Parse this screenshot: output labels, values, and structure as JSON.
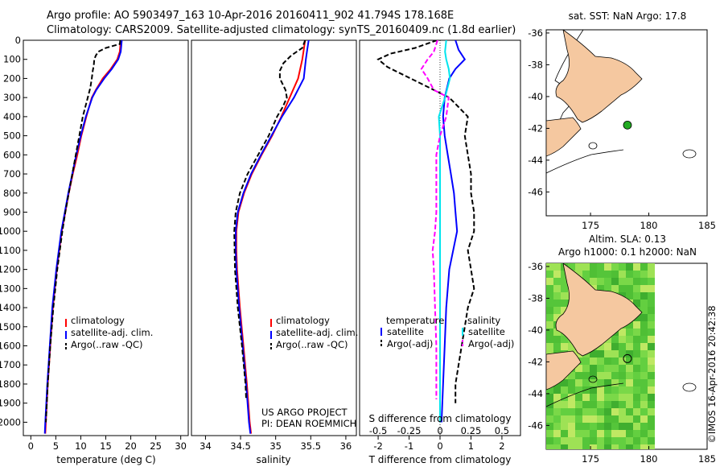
{
  "header": {
    "line1": "Argo profile: AO 5903497_163 10-Apr-2016 20160411_902 41.794S 178.168E",
    "line2": "Climatology: CARS2009. Satellite-adjusted climatology: synTS_20160409.nc (1.8d earlier)"
  },
  "colors": {
    "climatology": "#ff0000",
    "satellite": "#0000ff",
    "argo": "#000000",
    "salinity_satellite": "#00e5ee",
    "salinity_argo": "#ff00ff",
    "land": "#f5c8a0",
    "sla_field": "#59c83a"
  },
  "chart_data": [
    {
      "type": "line",
      "name": "temperature-profile",
      "xlabel": "temperature (deg C)",
      "ylabel": "",
      "xlim": [
        -1.5,
        31.5
      ],
      "ylim": [
        2070,
        0
      ],
      "xticks": [
        0,
        5,
        10,
        15,
        20,
        25,
        30
      ],
      "yticks": [
        0,
        100,
        200,
        300,
        400,
        500,
        600,
        700,
        800,
        900,
        1000,
        1100,
        1200,
        1300,
        1400,
        1500,
        1600,
        1700,
        1800,
        1900,
        2000
      ],
      "legend_position": "lower-left",
      "series": [
        {
          "name": "climatology",
          "color": "#ff0000",
          "style": "solid",
          "depth": [
            0,
            60,
            100,
            150,
            200,
            260,
            300,
            400,
            500,
            600,
            700,
            800,
            900,
            1000,
            1200,
            1400,
            1600,
            1800,
            2000,
            2060
          ],
          "values": [
            18.0,
            17.8,
            17.3,
            16.0,
            14.4,
            13.0,
            12.2,
            11.1,
            10.1,
            9.3,
            8.4,
            7.6,
            6.9,
            6.2,
            5.2,
            4.4,
            3.9,
            3.4,
            3.0,
            2.9
          ]
        },
        {
          "name": "satellite-adj. clim.",
          "color": "#0000ff",
          "style": "solid",
          "depth": [
            0,
            60,
            100,
            150,
            200,
            260,
            300,
            400,
            500,
            600,
            700,
            800,
            900,
            1000,
            1200,
            1400,
            1600,
            1800,
            2000,
            2060
          ],
          "values": [
            18.2,
            18.0,
            17.5,
            16.2,
            14.7,
            13.1,
            12.3,
            11.0,
            10.0,
            9.1,
            8.3,
            7.5,
            6.8,
            6.1,
            5.1,
            4.3,
            3.8,
            3.3,
            2.9,
            2.8
          ]
        },
        {
          "name": "Argo(..raw -QC)",
          "color": "#000000",
          "style": "dashed",
          "depth": [
            0,
            20,
            40,
            60,
            80,
            100,
            130,
            160,
            200,
            250,
            300,
            400,
            500,
            600,
            700,
            800,
            900,
            1000,
            1200,
            1400,
            1600,
            1800,
            2000
          ],
          "values": [
            17.9,
            17.8,
            15.0,
            13.5,
            13.0,
            12.7,
            12.6,
            12.4,
            12.2,
            11.9,
            11.4,
            10.4,
            9.7,
            9.0,
            8.3,
            7.6,
            6.9,
            6.3,
            5.3,
            4.5,
            3.9,
            3.4,
            3.0
          ]
        }
      ],
      "annotations": []
    },
    {
      "type": "line",
      "name": "salinity-profile",
      "xlabel": "salinity",
      "ylabel": "",
      "xlim": [
        33.8,
        36.15
      ],
      "ylim": [
        2070,
        0
      ],
      "xticks": [
        34,
        34.5,
        35,
        35.5,
        36
      ],
      "legend_position": "lower-right",
      "series": [
        {
          "name": "climatology",
          "color": "#ff0000",
          "style": "solid",
          "depth": [
            0,
            50,
            100,
            200,
            300,
            400,
            500,
            600,
            700,
            800,
            900,
            1000,
            1100,
            1200,
            1400,
            1600,
            1800,
            2000,
            2060
          ],
          "values": [
            35.42,
            35.4,
            35.38,
            35.32,
            35.2,
            35.08,
            34.95,
            34.8,
            34.66,
            34.55,
            34.47,
            34.44,
            34.44,
            34.45,
            34.49,
            34.54,
            34.59,
            34.63,
            34.65
          ]
        },
        {
          "name": "satellite-adj. clim.",
          "color": "#0000ff",
          "style": "solid",
          "depth": [
            0,
            50,
            100,
            200,
            300,
            400,
            500,
            600,
            700,
            800,
            900,
            1000,
            1100,
            1200,
            1400,
            1600,
            1800,
            2000,
            2060
          ],
          "values": [
            35.47,
            35.45,
            35.43,
            35.4,
            35.26,
            35.09,
            34.94,
            34.79,
            34.65,
            34.54,
            34.46,
            34.43,
            34.43,
            34.44,
            34.48,
            34.53,
            34.58,
            34.62,
            34.64
          ]
        },
        {
          "name": "Argo(..raw -QC)",
          "color": "#000000",
          "style": "dashed",
          "depth": [
            0,
            40,
            80,
            120,
            160,
            200,
            260,
            300,
            350,
            400,
            500,
            600,
            700,
            800,
            900,
            1000,
            1200,
            1400,
            1600,
            1800,
            1880
          ],
          "values": [
            35.42,
            35.38,
            35.22,
            35.11,
            35.06,
            35.06,
            35.14,
            35.16,
            35.1,
            35.02,
            34.9,
            34.75,
            34.6,
            34.49,
            34.43,
            34.41,
            34.42,
            34.46,
            34.52,
            34.57,
            34.58
          ]
        }
      ],
      "annotations": [
        "US ARGO PROJECT",
        "PI: DEAN ROEMMICH"
      ]
    },
    {
      "type": "line",
      "name": "difference-profile",
      "xlabel": "T difference from climatology",
      "x2label": "S difference from climatology",
      "xlim": [
        -2.6,
        2.6
      ],
      "x2lim": [
        -0.65,
        0.65
      ],
      "ylim": [
        2070,
        0
      ],
      "xticks": [
        -2,
        -1,
        0,
        1,
        2
      ],
      "x2ticks": [
        -0.5,
        -0.25,
        0,
        0.25,
        0.5
      ],
      "legend_position": "lower",
      "legend_titles": [
        "temperature",
        "salinity"
      ],
      "series": [
        {
          "name": "satellite",
          "group": "temperature",
          "color": "#0000ff",
          "style": "solid",
          "depth": [
            0,
            50,
            100,
            150,
            200,
            300,
            400,
            500,
            600,
            700,
            800,
            900,
            1000,
            1200,
            1400,
            1600,
            1800,
            2000
          ],
          "values": [
            0.5,
            0.6,
            0.8,
            0.5,
            0.3,
            0.15,
            0.1,
            0.15,
            0.25,
            0.35,
            0.45,
            0.5,
            0.55,
            0.3,
            0.2,
            0.15,
            0.1,
            0.05
          ]
        },
        {
          "name": "Argo(-adj)",
          "group": "temperature",
          "color": "#000000",
          "style": "dashed",
          "depth": [
            0,
            40,
            70,
            100,
            140,
            180,
            220,
            260,
            300,
            350,
            400,
            500,
            600,
            700,
            800,
            900,
            1000,
            1100,
            1200,
            1300,
            1400,
            1500,
            1600,
            1800,
            1900
          ],
          "values": [
            -0.1,
            -0.8,
            -1.6,
            -2.0,
            -1.7,
            -1.2,
            -0.7,
            -0.2,
            0.3,
            0.6,
            0.9,
            0.8,
            0.9,
            1.0,
            1.0,
            1.1,
            1.1,
            0.9,
            1.0,
            1.1,
            0.9,
            0.8,
            0.7,
            0.5,
            0.5
          ]
        },
        {
          "name": "satellite",
          "group": "salinity",
          "color": "#00e5ee",
          "style": "solid",
          "depth": [
            0,
            60,
            100,
            150,
            200,
            300,
            400,
            500,
            600,
            700,
            800,
            1000,
            1200,
            1400,
            1600,
            1800,
            2000
          ],
          "values": [
            0.05,
            0.04,
            0.05,
            0.07,
            0.08,
            0.04,
            -0.01,
            0.0,
            0.0,
            0.0,
            0.0,
            0.0,
            0.0,
            0.0,
            0.0,
            0.0,
            0.0
          ]
        },
        {
          "name": "Argo(-adj)",
          "group": "salinity",
          "color": "#ff00ff",
          "style": "dashed",
          "depth": [
            0,
            60,
            100,
            150,
            200,
            260,
            300,
            400,
            500,
            600,
            700,
            800,
            900,
            1000,
            1100,
            1200,
            1400,
            1600,
            1800,
            1880
          ],
          "values": [
            -0.02,
            -0.05,
            -0.1,
            -0.15,
            -0.1,
            -0.05,
            0.07,
            0.05,
            0.0,
            -0.03,
            -0.03,
            -0.03,
            -0.03,
            -0.04,
            -0.06,
            -0.05,
            -0.04,
            -0.03,
            -0.03,
            -0.03
          ]
        }
      ]
    },
    {
      "type": "map",
      "name": "sst-map",
      "title": "sat. SST: NaN Argo: 17.8",
      "xlim": [
        171.2,
        185
      ],
      "ylim": [
        -47.5,
        -35.8
      ],
      "xticks": [
        175,
        180,
        185
      ],
      "yticks": [
        -36,
        -38,
        -40,
        -42,
        -44,
        -46
      ],
      "argo_float": {
        "lon": 178.168,
        "lat": -41.794,
        "color": "#22aa22"
      }
    },
    {
      "type": "map",
      "name": "sla-map",
      "title_line1": "Altim. SLA: 0.13",
      "title_line2": "Argo h1000: 0.1 h2000: NaN",
      "xlim": [
        171.2,
        185
      ],
      "ylim": [
        -47.5,
        -35.8
      ],
      "xticks": [
        175,
        180,
        185
      ],
      "yticks": [
        -36,
        -38,
        -40,
        -42,
        -44,
        -46
      ],
      "argo_float": {
        "lon": 178.168,
        "lat": -41.794
      }
    }
  ],
  "credit": "©IMOS 16-Apr-2016 20:42:38"
}
